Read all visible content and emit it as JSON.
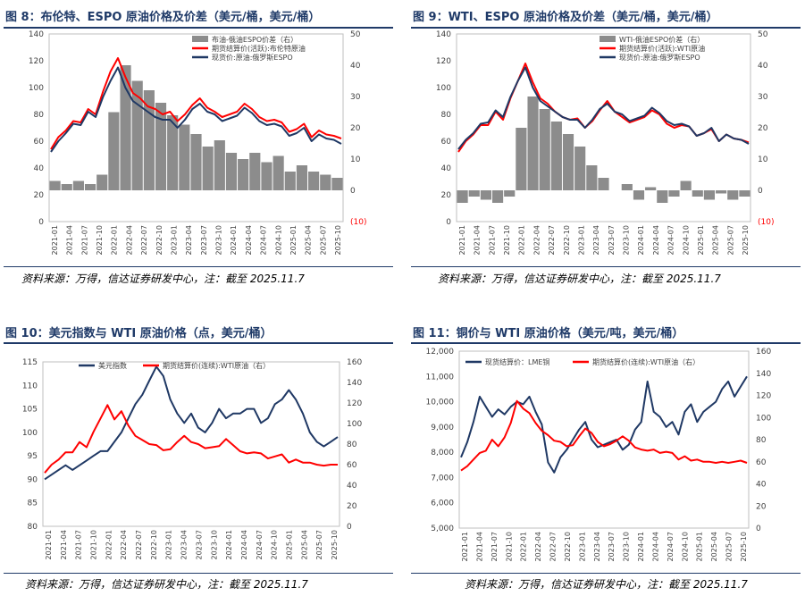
{
  "panels": [
    {
      "title": "图 8：布伦特、ESPO 原油价格及价差（美元/桶，美元/桶）",
      "source": "资料来源：万得，信达证券研发中心，注：截至 2025.11.7"
    },
    {
      "title": "图 9：WTI、ESPO 原油价格及价差（美元/桶，美元/桶）",
      "source": "资料来源：万得，信达证券研发中心，注：截至 2025.11.7"
    },
    {
      "title": "图 10：美元指数与 WTI 原油价格（点，美元/桶）",
      "source": "资料来源：万得，信达证券研发中心，注：截至 2025.11.7"
    },
    {
      "title": "图 11：铜价与 WTI 原油价格（美元/吨，美元/桶）",
      "source": "资料来源：万得，信达证券研发中心，注：截至 2025.11.7"
    }
  ],
  "chart_data": [
    {
      "type": "line",
      "x_ticks": [
        "2021-01",
        "2021-04",
        "2021-07",
        "2021-10",
        "2022-01",
        "2022-04",
        "2022-07",
        "2022-10",
        "2023-01",
        "2023-04",
        "2023-07",
        "2023-10",
        "2024-01",
        "2024-04",
        "2024-07",
        "2024-10",
        "2025-01",
        "2025-04",
        "2025-07",
        "2025-10"
      ],
      "ylim": [
        0,
        140
      ],
      "y_ticks": [
        "0",
        "20",
        "40",
        "60",
        "80",
        "100",
        "120",
        "140"
      ],
      "y2lim": [
        -10,
        50
      ],
      "y2_ticks": [
        "(10)",
        "0",
        "10",
        "20",
        "30",
        "40",
        "50"
      ],
      "series": [
        {
          "name": "布油-俄油ESPO价差（右）",
          "kind": "bar",
          "axis": "right",
          "color": "#8c8c8c",
          "values": [
            3,
            2,
            3,
            2,
            5,
            25,
            40,
            35,
            32,
            28,
            24,
            21,
            18,
            14,
            16,
            12,
            10,
            12,
            9,
            11,
            6,
            8,
            6,
            5,
            4
          ]
        },
        {
          "name": "期货结算价(活跃):布伦特原油",
          "kind": "line",
          "axis": "left",
          "color": "#ff0000",
          "values": [
            54,
            63,
            68,
            75,
            74,
            84,
            80,
            97,
            112,
            122,
            108,
            96,
            92,
            86,
            84,
            80,
            82,
            75,
            80,
            87,
            92,
            85,
            82,
            78,
            80,
            82,
            88,
            84,
            78,
            75,
            76,
            74,
            67,
            69,
            73,
            63,
            68,
            65,
            64,
            62
          ]
        },
        {
          "name": "现货价:原油:俄罗斯ESPO",
          "kind": "line",
          "axis": "left",
          "color": "#1f3864",
          "values": [
            52,
            60,
            66,
            73,
            72,
            82,
            78,
            93,
            105,
            115,
            100,
            90,
            86,
            82,
            78,
            76,
            76,
            70,
            76,
            84,
            88,
            82,
            80,
            75,
            77,
            79,
            85,
            81,
            75,
            72,
            73,
            71,
            64,
            66,
            70,
            60,
            65,
            62,
            61,
            58
          ]
        }
      ]
    },
    {
      "type": "line",
      "x_ticks": [
        "2021-01",
        "2021-04",
        "2021-07",
        "2021-10",
        "2022-01",
        "2022-04",
        "2022-07",
        "2022-10",
        "2023-01",
        "2023-04",
        "2023-07",
        "2023-10",
        "2024-01",
        "2024-04",
        "2024-07",
        "2024-10",
        "2025-01",
        "2025-04",
        "2025-07",
        "2025-10"
      ],
      "ylim": [
        0,
        140
      ],
      "y_ticks": [
        "0",
        "20",
        "40",
        "60",
        "80",
        "100",
        "120",
        "140"
      ],
      "y2lim": [
        -10,
        50
      ],
      "y2_ticks": [
        "(10)",
        "0",
        "10",
        "20",
        "30",
        "40",
        "50"
      ],
      "series": [
        {
          "name": "WTI-俄油ESPO价差（右）",
          "kind": "bar",
          "axis": "right",
          "color": "#8c8c8c",
          "values": [
            -4,
            -2,
            -3,
            -4,
            -2,
            20,
            30,
            26,
            22,
            18,
            14,
            8,
            4,
            0,
            2,
            -3,
            1,
            -4,
            -2,
            3,
            -2,
            -3,
            -1,
            -3,
            -2
          ]
        },
        {
          "name": "期货结算价(活跃):WTI原油",
          "kind": "line",
          "axis": "left",
          "color": "#ff0000",
          "values": [
            52,
            60,
            65,
            72,
            72,
            82,
            76,
            92,
            105,
            118,
            104,
            92,
            88,
            82,
            78,
            76,
            77,
            70,
            75,
            83,
            90,
            82,
            78,
            74,
            76,
            78,
            83,
            80,
            73,
            70,
            72,
            71,
            64,
            66,
            69,
            60,
            65,
            62,
            61,
            59
          ]
        },
        {
          "name": "现货价:原油:俄罗斯ESPO",
          "kind": "line",
          "axis": "left",
          "color": "#1f3864",
          "values": [
            54,
            61,
            66,
            73,
            74,
            83,
            78,
            93,
            105,
            115,
            100,
            90,
            86,
            82,
            78,
            76,
            76,
            70,
            76,
            84,
            88,
            82,
            80,
            75,
            77,
            79,
            85,
            81,
            75,
            72,
            73,
            71,
            64,
            66,
            70,
            60,
            65,
            62,
            61,
            58
          ]
        }
      ]
    },
    {
      "type": "line",
      "x_ticks": [
        "2021-01",
        "2021-04",
        "2021-07",
        "2021-10",
        "2022-01",
        "2022-04",
        "2022-07",
        "2022-10",
        "2023-01",
        "2023-04",
        "2023-07",
        "2023-10",
        "2024-01",
        "2024-04",
        "2024-07",
        "2024-10",
        "2025-01",
        "2025-04",
        "2025-07",
        "2025-10"
      ],
      "ylim": [
        80,
        115
      ],
      "y_ticks": [
        "80",
        "85",
        "90",
        "95",
        "100",
        "105",
        "110",
        "115"
      ],
      "y2lim": [
        0,
        160
      ],
      "y2_ticks": [
        "0",
        "20",
        "40",
        "60",
        "80",
        "100",
        "120",
        "140",
        "160"
      ],
      "series": [
        {
          "name": "美元指数",
          "kind": "line",
          "axis": "left",
          "color": "#1f3864",
          "values": [
            90,
            91,
            92,
            93,
            92,
            93,
            94,
            95,
            96,
            96,
            98,
            100,
            103,
            106,
            108,
            111,
            114,
            112,
            107,
            104,
            102,
            104,
            101,
            100,
            102,
            105,
            103,
            104,
            104,
            105,
            105,
            102,
            103,
            106,
            107,
            109,
            107,
            104,
            100,
            98,
            97,
            98,
            99
          ]
        },
        {
          "name": "期货结算价(连续):WTI原油（右）",
          "kind": "line",
          "axis": "right",
          "color": "#ff0000",
          "values": [
            52,
            60,
            65,
            72,
            72,
            82,
            77,
            92,
            105,
            118,
            104,
            112,
            98,
            88,
            84,
            80,
            79,
            74,
            75,
            82,
            88,
            82,
            80,
            76,
            77,
            78,
            85,
            79,
            73,
            71,
            72,
            71,
            66,
            68,
            70,
            62,
            65,
            62,
            62,
            60,
            59,
            60,
            60
          ]
        }
      ]
    },
    {
      "type": "line",
      "x_ticks": [
        "2021-01",
        "2021-04",
        "2021-07",
        "2021-10",
        "2022-01",
        "2022-04",
        "2022-07",
        "2022-10",
        "2023-01",
        "2023-04",
        "2023-07",
        "2023-10",
        "2024-01",
        "2024-04",
        "2024-07",
        "2024-10",
        "2025-01",
        "2025-04",
        "2025-07",
        "2025-10"
      ],
      "ylim": [
        5000,
        12000
      ],
      "y_ticks": [
        "5,000",
        "6,000",
        "7,000",
        "8,000",
        "9,000",
        "10,000",
        "11,000",
        "12,000"
      ],
      "y2lim": [
        0,
        160
      ],
      "y2_ticks": [
        "0",
        "20",
        "40",
        "60",
        "80",
        "100",
        "120",
        "140",
        "160"
      ],
      "series": [
        {
          "name": "现货结算价：LME铜",
          "kind": "line",
          "axis": "left",
          "color": "#1f3864",
          "values": [
            7800,
            8400,
            9200,
            10200,
            9800,
            9400,
            9700,
            9500,
            9800,
            10000,
            9900,
            10200,
            9600,
            9100,
            7600,
            7200,
            7800,
            8100,
            8500,
            8900,
            9200,
            8500,
            8200,
            8300,
            8400,
            8500,
            8100,
            8300,
            8900,
            9200,
            10800,
            9600,
            9400,
            9000,
            9200,
            8700,
            9600,
            9900,
            9200,
            9600,
            9800,
            10000,
            10500,
            10800,
            10200,
            10600,
            11000
          ]
        },
        {
          "name": "期货结算价(连续):WTI原油（右）",
          "kind": "line",
          "axis": "right",
          "color": "#ff0000",
          "values": [
            52,
            56,
            62,
            68,
            70,
            80,
            74,
            82,
            95,
            115,
            108,
            104,
            95,
            88,
            84,
            79,
            78,
            74,
            75,
            83,
            90,
            86,
            78,
            74,
            76,
            79,
            83,
            79,
            73,
            71,
            70,
            71,
            68,
            69,
            68,
            62,
            65,
            61,
            62,
            60,
            60,
            59,
            60,
            59,
            60,
            61,
            59
          ]
        }
      ]
    }
  ]
}
